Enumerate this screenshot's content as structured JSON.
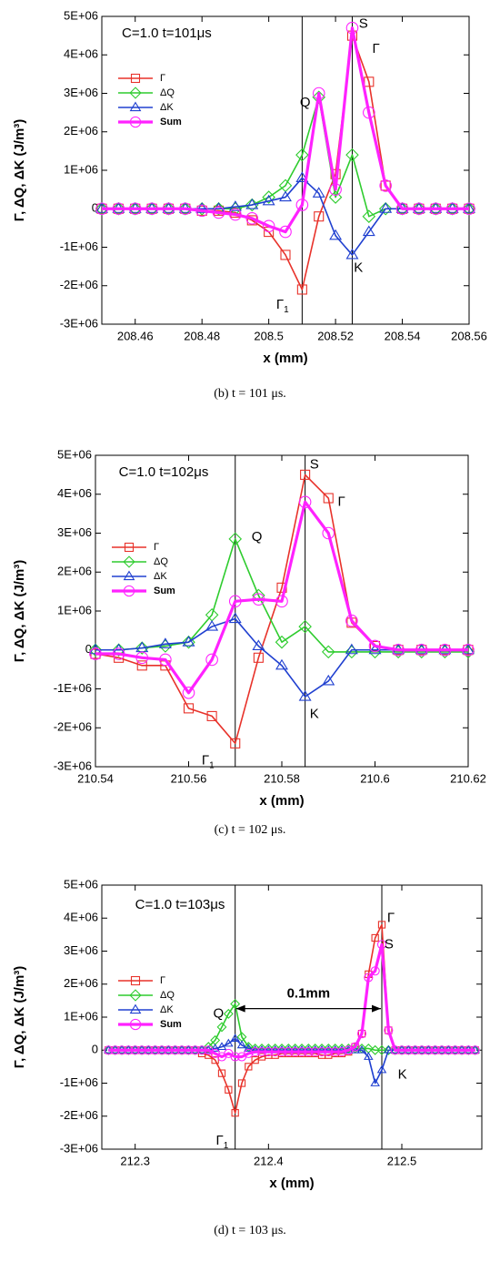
{
  "chart_data": [
    {
      "type": "line",
      "caption": "(b) t = 101 μs.",
      "x_label": "x (mm)",
      "y_label": "Γ, ΔQ, ΔK (J/m³)",
      "annotations": [
        {
          "text": "C=1.0 t=101μs"
        },
        {
          "text": "S"
        },
        {
          "text": "Γ"
        },
        {
          "text": "Q"
        },
        {
          "text": "Γ",
          "sub": "1"
        },
        {
          "text": "K"
        }
      ],
      "vlines": [
        208.51,
        208.525
      ],
      "x": [
        208.45,
        208.455,
        208.46,
        208.465,
        208.47,
        208.475,
        208.48,
        208.485,
        208.49,
        208.495,
        208.5,
        208.505,
        208.51,
        208.515,
        208.52,
        208.525,
        208.53,
        208.535,
        208.54,
        208.545,
        208.55,
        208.555,
        208.56
      ],
      "series": [
        {
          "name": "Γ",
          "color": "#e8322a",
          "marker": "square",
          "line_width": 1.6,
          "values": [
            0,
            0,
            0,
            0,
            0,
            0,
            -50000,
            -50000,
            -100000,
            -300000,
            -600000,
            -1200000,
            -2100000,
            -200000,
            900000,
            4500000,
            3300000,
            600000,
            0,
            0,
            0,
            0,
            0
          ]
        },
        {
          "name": "ΔQ",
          "color": "#2ecc2e",
          "marker": "diamond",
          "line_width": 1.6,
          "values": [
            0,
            0,
            0,
            0,
            0,
            0,
            0,
            0,
            0,
            100000,
            300000,
            600000,
            1400000,
            2900000,
            300000,
            1400000,
            -200000,
            0,
            0,
            0,
            0,
            0,
            0
          ]
        },
        {
          "name": "ΔK",
          "color": "#2040d0",
          "marker": "triangle",
          "line_width": 1.6,
          "values": [
            0,
            0,
            0,
            0,
            0,
            0,
            0,
            0,
            50000,
            100000,
            200000,
            300000,
            800000,
            400000,
            -700000,
            -1200000,
            -600000,
            0,
            0,
            0,
            0,
            0,
            0
          ]
        },
        {
          "name": "Sum",
          "color": "#ff22ff",
          "marker": "circle",
          "line_width": 3.2,
          "values": [
            0,
            0,
            0,
            0,
            0,
            0,
            -50000,
            -100000,
            -150000,
            -250000,
            -450000,
            -600000,
            100000,
            3000000,
            500000,
            4700000,
            2500000,
            600000,
            0,
            0,
            0,
            0,
            0
          ]
        }
      ],
      "xlim": [
        208.45,
        208.56
      ],
      "xticks": [
        208.46,
        208.48,
        208.5,
        208.52,
        208.54,
        208.56
      ],
      "ylim": [
        -3000000,
        5000000
      ],
      "yticks": [
        {
          "value": 5000000,
          "label": "5E+06"
        },
        {
          "value": 4000000,
          "label": "4E+06"
        },
        {
          "value": 3000000,
          "label": "3E+06"
        },
        {
          "value": 2000000,
          "label": "2E+06"
        },
        {
          "value": 1000000,
          "label": "1E+06"
        },
        0,
        {
          "value": -1000000,
          "label": "-1E+06"
        },
        {
          "value": -2000000,
          "label": "-2E+06"
        },
        {
          "value": -3000000,
          "label": "-3E+06"
        }
      ],
      "legend": "upper left",
      "grid": false
    },
    {
      "type": "line",
      "caption": "(c) t = 102 μs.",
      "x_label": "x (mm)",
      "y_label": "Γ, ΔQ, ΔK (J/m³)",
      "annotations": [
        {
          "text": "C=1.0 t=102μs"
        },
        {
          "text": "S"
        },
        {
          "text": "Γ"
        },
        {
          "text": "Q"
        },
        {
          "text": "Γ",
          "sub": "1"
        },
        {
          "text": "K"
        }
      ],
      "vlines": [
        210.57,
        210.585
      ],
      "x": [
        210.54,
        210.545,
        210.55,
        210.555,
        210.56,
        210.565,
        210.57,
        210.575,
        210.58,
        210.585,
        210.59,
        210.595,
        210.6,
        210.605,
        210.61,
        210.615,
        210.62
      ],
      "series": [
        {
          "name": "Γ",
          "color": "#e8322a",
          "marker": "square",
          "line_width": 1.6,
          "values": [
            -100000,
            -200000,
            -400000,
            -400000,
            -1500000,
            -1700000,
            -2400000,
            -200000,
            1600000,
            4500000,
            3900000,
            700000,
            100000,
            0,
            0,
            0,
            0
          ]
        },
        {
          "name": "ΔQ",
          "color": "#2ecc2e",
          "marker": "diamond",
          "line_width": 1.6,
          "values": [
            0,
            0,
            50000,
            100000,
            200000,
            900000,
            2850000,
            1400000,
            200000,
            600000,
            -50000,
            -50000,
            -50000,
            -50000,
            -50000,
            -50000,
            -50000
          ]
        },
        {
          "name": "ΔK",
          "color": "#2040d0",
          "marker": "triangle",
          "line_width": 1.6,
          "values": [
            0,
            0,
            50000,
            150000,
            200000,
            600000,
            800000,
            100000,
            -400000,
            -1200000,
            -800000,
            0,
            0,
            0,
            0,
            0,
            0
          ]
        },
        {
          "name": "Sum",
          "color": "#ff22ff",
          "marker": "circle",
          "line_width": 3.2,
          "values": [
            -100000,
            -100000,
            -200000,
            -250000,
            -1100000,
            -250000,
            1250000,
            1300000,
            1250000,
            3800000,
            3000000,
            750000,
            100000,
            0,
            0,
            0,
            0
          ]
        }
      ],
      "xlim": [
        210.54,
        210.62
      ],
      "xticks": [
        210.54,
        210.56,
        210.58,
        210.6,
        210.62
      ],
      "ylim": [
        -3000000,
        5000000
      ],
      "yticks": [
        {
          "value": 5000000,
          "label": "5E+06"
        },
        {
          "value": 4000000,
          "label": "4E+06"
        },
        {
          "value": 3000000,
          "label": "3E+06"
        },
        {
          "value": 2000000,
          "label": "2E+06"
        },
        {
          "value": 1000000,
          "label": "1E+06"
        },
        0,
        {
          "value": -1000000,
          "label": "-1E+06"
        },
        {
          "value": -2000000,
          "label": "-2E+06"
        },
        {
          "value": -3000000,
          "label": "-3E+06"
        }
      ],
      "legend": "upper left",
      "grid": false
    },
    {
      "type": "line",
      "caption": "(d) t = 103 μs.",
      "x_label": "x (mm)",
      "y_label": "Γ, ΔQ, ΔK (J/m³)",
      "annotations": [
        {
          "text": "C=1.0 t=103μs"
        },
        {
          "text": "Γ"
        },
        {
          "text": "S"
        },
        {
          "text": "Q"
        },
        {
          "text": "Γ",
          "sub": "1"
        },
        {
          "text": "K"
        },
        {
          "text": "0.1mm"
        }
      ],
      "vlines": [
        212.375,
        212.485
      ],
      "x": [
        212.28,
        212.285,
        212.29,
        212.295,
        212.3,
        212.305,
        212.31,
        212.315,
        212.32,
        212.325,
        212.33,
        212.335,
        212.34,
        212.345,
        212.35,
        212.355,
        212.36,
        212.365,
        212.37,
        212.375,
        212.38,
        212.385,
        212.39,
        212.395,
        212.4,
        212.405,
        212.41,
        212.415,
        212.42,
        212.425,
        212.43,
        212.435,
        212.44,
        212.445,
        212.45,
        212.455,
        212.46,
        212.465,
        212.47,
        212.475,
        212.48,
        212.485,
        212.49,
        212.495,
        212.5,
        212.505,
        212.51,
        212.515,
        212.52,
        212.525,
        212.53,
        212.535,
        212.54,
        212.545,
        212.55,
        212.555
      ],
      "series": [
        {
          "name": "Γ",
          "color": "#e8322a",
          "marker": "square",
          "line_width": 1.6,
          "values": [
            0,
            0,
            0,
            0,
            0,
            0,
            0,
            0,
            0,
            0,
            0,
            0,
            0,
            0,
            -100000,
            -150000,
            -300000,
            -700000,
            -1200000,
            -1900000,
            -1000000,
            -500000,
            -300000,
            -200000,
            -150000,
            -150000,
            -100000,
            -100000,
            -100000,
            -100000,
            -100000,
            -100000,
            -150000,
            -150000,
            -100000,
            -100000,
            -50000,
            100000,
            500000,
            2300000,
            3400000,
            3800000,
            600000,
            0,
            0,
            0,
            0,
            0,
            0,
            0,
            0,
            0,
            0,
            0,
            0,
            0
          ]
        },
        {
          "name": "ΔQ",
          "color": "#2ecc2e",
          "marker": "diamond",
          "line_width": 1.6,
          "values": [
            0,
            0,
            0,
            0,
            0,
            0,
            0,
            0,
            0,
            0,
            0,
            0,
            0,
            0,
            0,
            100000,
            300000,
            700000,
            1100000,
            1400000,
            400000,
            100000,
            50000,
            50000,
            50000,
            50000,
            50000,
            50000,
            50000,
            50000,
            50000,
            50000,
            50000,
            50000,
            50000,
            50000,
            50000,
            50000,
            50000,
            50000,
            0,
            0,
            0,
            0,
            0,
            0,
            0,
            0,
            0,
            0,
            0,
            0,
            0,
            0,
            0,
            0
          ]
        },
        {
          "name": "ΔK",
          "color": "#2040d0",
          "marker": "triangle",
          "line_width": 1.6,
          "values": [
            0,
            0,
            0,
            0,
            0,
            0,
            0,
            0,
            0,
            0,
            0,
            0,
            0,
            0,
            0,
            0,
            50000,
            100000,
            200000,
            350000,
            150000,
            50000,
            0,
            0,
            0,
            0,
            0,
            0,
            0,
            0,
            0,
            0,
            0,
            0,
            0,
            0,
            0,
            0,
            0,
            -200000,
            -1000000,
            -600000,
            0,
            0,
            0,
            0,
            0,
            0,
            0,
            0,
            0,
            0,
            0,
            0,
            0,
            0
          ]
        },
        {
          "name": "Sum",
          "color": "#ff22ff",
          "marker": "circle",
          "line_width": 3.2,
          "values": [
            0,
            0,
            0,
            0,
            0,
            0,
            0,
            0,
            0,
            0,
            0,
            0,
            0,
            0,
            0,
            0,
            -100000,
            -200000,
            -100000,
            -200000,
            -200000,
            -100000,
            -50000,
            -50000,
            -50000,
            -50000,
            -50000,
            -50000,
            -50000,
            -50000,
            -50000,
            -50000,
            -50000,
            -50000,
            -50000,
            -50000,
            0,
            100000,
            500000,
            2200000,
            2400000,
            3200000,
            600000,
            0,
            0,
            0,
            0,
            0,
            0,
            0,
            0,
            0,
            0,
            0,
            0,
            0
          ]
        }
      ],
      "xlim": [
        212.275,
        212.56
      ],
      "xticks": [
        212.3,
        212.4,
        212.5
      ],
      "ylim": [
        -3000000,
        5000000
      ],
      "yticks": [
        {
          "value": 5000000,
          "label": "5E+06"
        },
        {
          "value": 4000000,
          "label": "4E+06"
        },
        {
          "value": 3000000,
          "label": "3E+06"
        },
        {
          "value": 2000000,
          "label": "2E+06"
        },
        {
          "value": 1000000,
          "label": "1E+06"
        },
        0,
        {
          "value": -1000000,
          "label": "-1E+06"
        },
        {
          "value": -2000000,
          "label": "-2E+06"
        },
        {
          "value": -3000000,
          "label": "-3E+06"
        }
      ],
      "legend": "upper left",
      "grid": false
    }
  ]
}
